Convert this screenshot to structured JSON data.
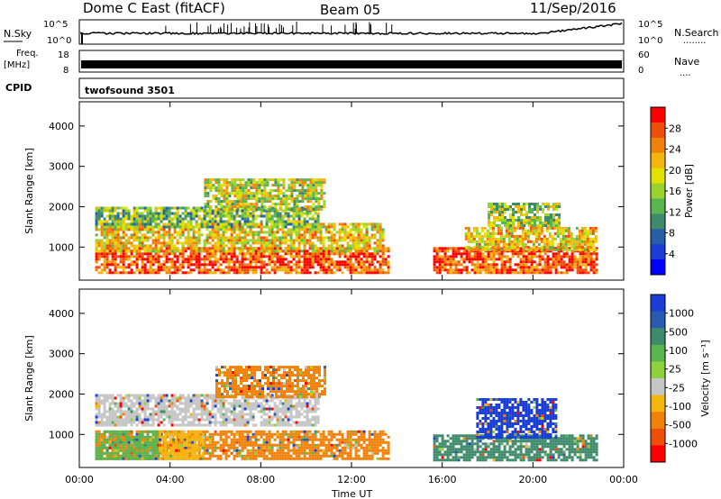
{
  "header": {
    "title": "Dome C East (fitACF)",
    "beam": "Beam 05",
    "date": "11/Sep/2016"
  },
  "nsky_panel": {
    "label": "N.Sky",
    "left_ticks": [
      "10^5",
      "10^0"
    ],
    "right_label": "N.Search",
    "right_ticks": [
      "10^5",
      "10^0"
    ],
    "right_legend_dots": "........"
  },
  "freq_panel": {
    "label_top": "Freq.",
    "label_unit": "[MHz]",
    "left_ticks": [
      "18",
      "8"
    ],
    "right_label": "Nave",
    "right_ticks": [
      "60",
      "0"
    ],
    "right_legend_dots": "...."
  },
  "cpid_panel": {
    "label": "CPID",
    "value": "twofsound 3501"
  },
  "chart_data": [
    {
      "type": "heatmap",
      "name": "power",
      "ylabel": "Slant Range [km]",
      "xlabel": "",
      "x_ticks": [
        "00:00",
        "04:00",
        "08:00",
        "12:00",
        "16:00",
        "20:00",
        "00:00"
      ],
      "xlim_hours": [
        0,
        24
      ],
      "y_ticks": [
        1000,
        2000,
        3000,
        4000
      ],
      "ylim_km": [
        180,
        4600
      ],
      "colorbar": {
        "label": "Power [dB]",
        "ticks": [
          "28",
          "24",
          "20",
          "16",
          "12",
          "8",
          "4"
        ],
        "colors": [
          "#ff0000",
          "#ee4e0a",
          "#f0820a",
          "#f3b60f",
          "#e1e100",
          "#98d42d",
          "#59b54e",
          "#3e8a6a",
          "#275ea6",
          "#1a3dd8",
          "#0000ff"
        ]
      },
      "echo_regions": [
        {
          "t0": 0.7,
          "t1": 13.6,
          "r0": 380,
          "r1": 1000,
          "level": 0.9
        },
        {
          "t0": 0.7,
          "t1": 13.4,
          "r0": 900,
          "r1": 1600,
          "level": 0.65
        },
        {
          "t0": 0.7,
          "t1": 10.5,
          "r0": 1500,
          "r1": 2000,
          "level": 0.45
        },
        {
          "t0": 5.5,
          "t1": 10.8,
          "r0": 1900,
          "r1": 2700,
          "level": 0.55
        },
        {
          "t0": 15.6,
          "t1": 22.8,
          "r0": 380,
          "r1": 1000,
          "level": 0.9
        },
        {
          "t0": 17.0,
          "t1": 22.8,
          "r0": 900,
          "r1": 1500,
          "level": 0.65
        },
        {
          "t0": 18.0,
          "t1": 21.2,
          "r0": 1500,
          "r1": 2100,
          "level": 0.5
        }
      ]
    },
    {
      "type": "heatmap",
      "name": "velocity",
      "ylabel": "Slant Range [km]",
      "xlabel": "Time UT",
      "x_ticks": [
        "00:00",
        "04:00",
        "08:00",
        "12:00",
        "16:00",
        "20:00",
        "00:00"
      ],
      "xlim_hours": [
        0,
        24
      ],
      "y_ticks": [
        1000,
        2000,
        3000,
        4000
      ],
      "ylim_km": [
        180,
        4600
      ],
      "colorbar": {
        "label": "Velocity [m s⁻¹]",
        "ticks": [
          "1000",
          "500",
          "100",
          "25",
          "-25",
          "-100",
          "-500",
          "-1000"
        ],
        "colors": [
          "#1a3dd8",
          "#2a5ab0",
          "#3e8a6a",
          "#59b54e",
          "#8fd13c",
          "#c6c6c6",
          "#f3b60f",
          "#f0820a",
          "#ee4e0a",
          "#ff0000"
        ]
      },
      "echo_regions": [
        {
          "t0": 0.7,
          "t1": 13.6,
          "r0": 380,
          "r1": 1100,
          "color": "#f0820a"
        },
        {
          "t0": 0.7,
          "t1": 3.5,
          "r0": 380,
          "r1": 1100,
          "color": "#59b54e"
        },
        {
          "t0": 3.5,
          "t1": 5.5,
          "r0": 380,
          "r1": 1100,
          "color": "#f3b60f"
        },
        {
          "t0": 0.7,
          "t1": 10.5,
          "r0": 1200,
          "r1": 2000,
          "color": "#c6c6c6"
        },
        {
          "t0": 6.0,
          "t1": 10.8,
          "r0": 1900,
          "r1": 2700,
          "color": "#f0820a"
        },
        {
          "t0": 15.6,
          "t1": 22.8,
          "r0": 380,
          "r1": 1000,
          "color": "#3e8a6a"
        },
        {
          "t0": 17.5,
          "t1": 21.0,
          "r0": 900,
          "r1": 1900,
          "color": "#1a3dd8"
        }
      ]
    }
  ]
}
